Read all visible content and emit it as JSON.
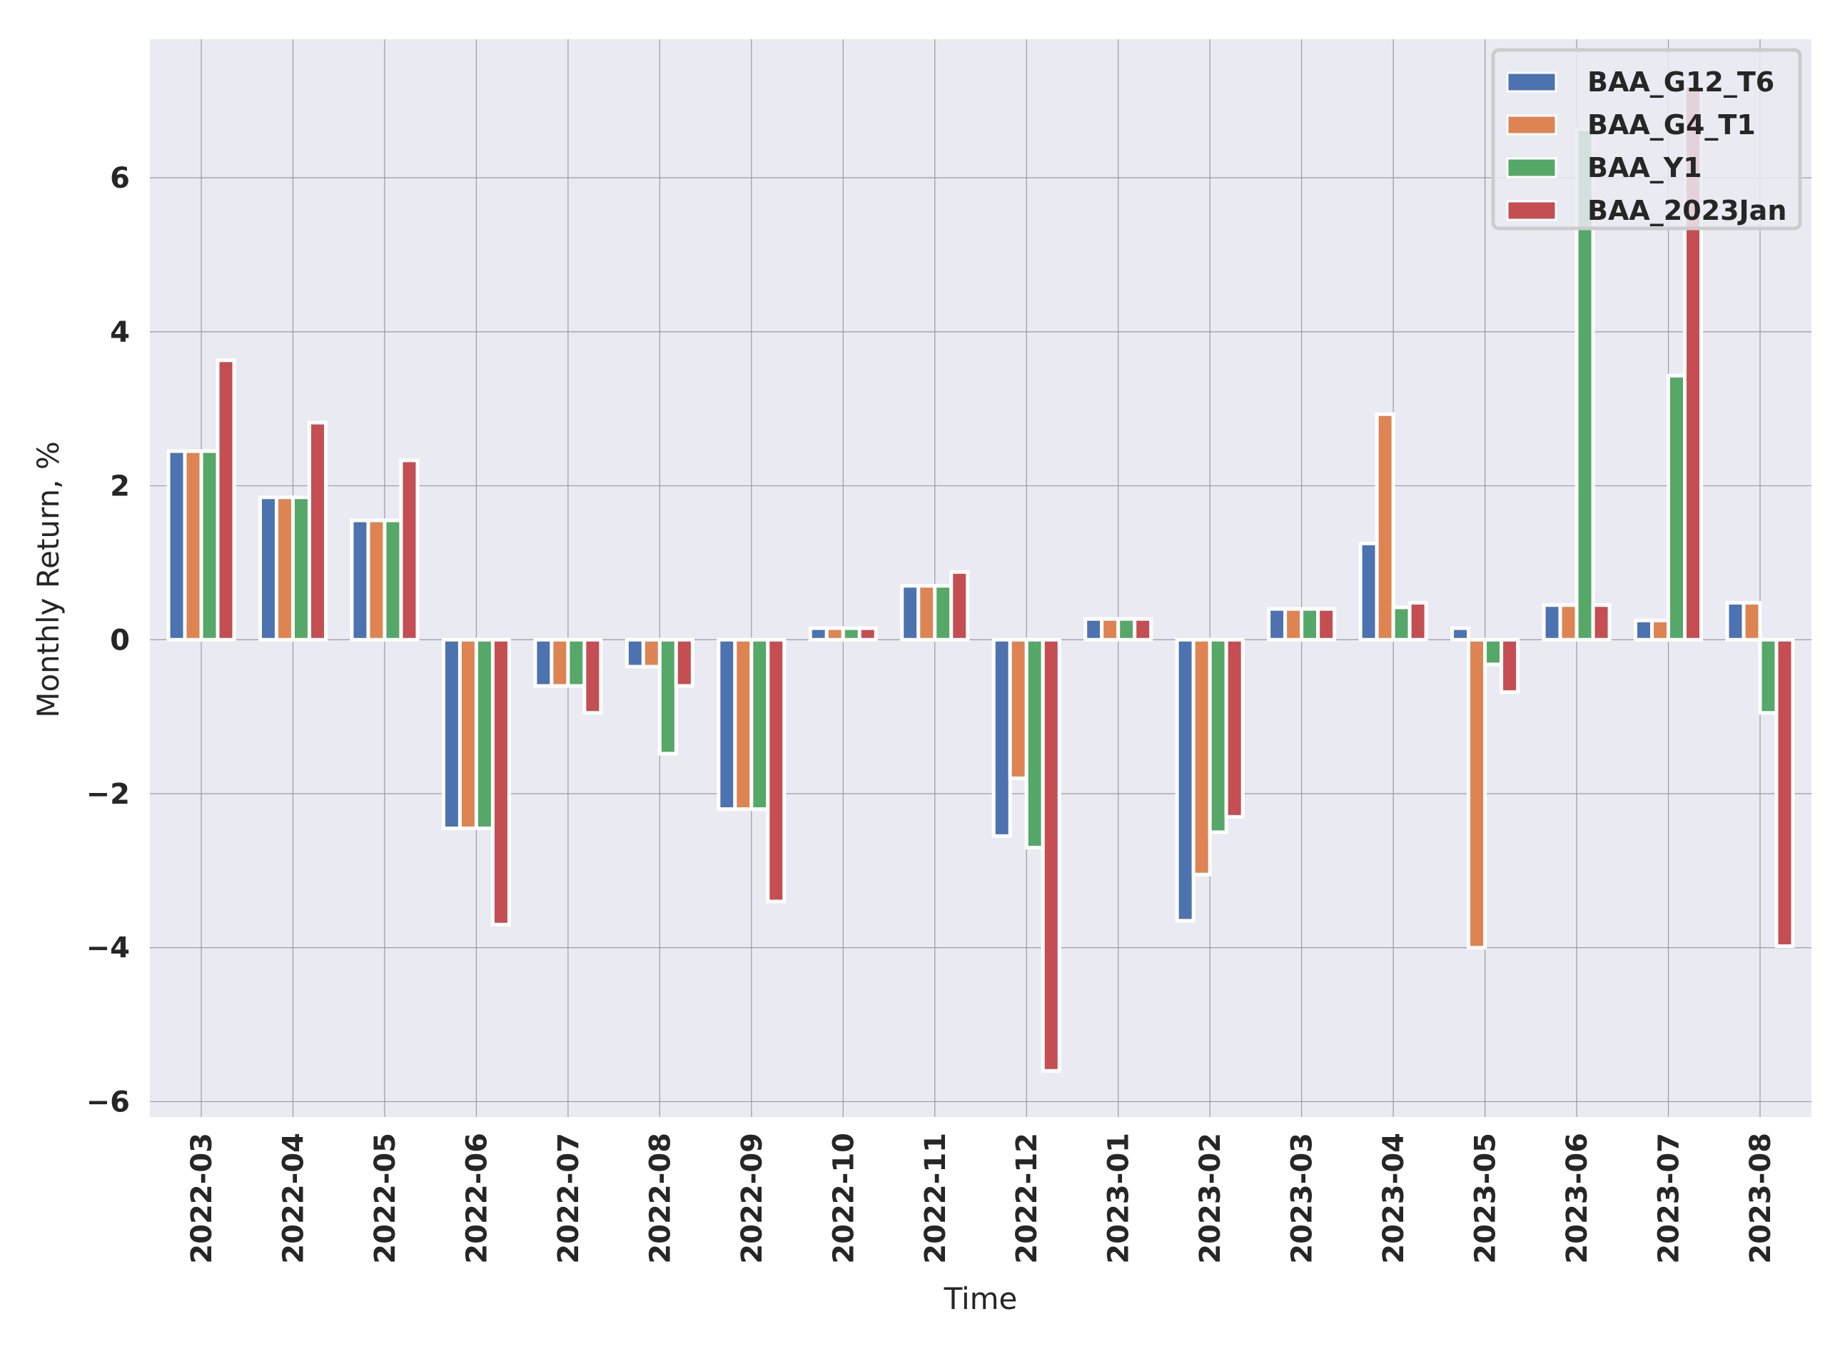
{
  "chart_data": {
    "type": "bar",
    "title": "",
    "xlabel": "Time",
    "ylabel": "Monthly Return, %",
    "ylim": [
      -6.2,
      7.8
    ],
    "yticks": [
      -6,
      -4,
      -2,
      0,
      2,
      4,
      6
    ],
    "ytick_labels": [
      "−6",
      "−4",
      "−2",
      "0",
      "2",
      "4",
      "6"
    ],
    "grid": true,
    "legend_position": "top-right",
    "categories": [
      "2022-03",
      "2022-04",
      "2022-05",
      "2022-06",
      "2022-07",
      "2022-08",
      "2022-09",
      "2022-10",
      "2022-11",
      "2022-12",
      "2023-01",
      "2023-02",
      "2023-03",
      "2023-04",
      "2023-05",
      "2023-06",
      "2023-07",
      "2023-08"
    ],
    "series": [
      {
        "name": "BAA_G12_T6",
        "color": "#4c72b0",
        "values": [
          2.45,
          1.85,
          1.55,
          -2.45,
          -0.6,
          -0.35,
          -2.2,
          0.15,
          0.7,
          -2.55,
          0.27,
          -3.65,
          0.4,
          1.25,
          0.15,
          0.45,
          0.25,
          0.48
        ]
      },
      {
        "name": "BAA_G4_T1",
        "color": "#dd8452",
        "values": [
          2.45,
          1.85,
          1.55,
          -2.45,
          -0.6,
          -0.35,
          -2.2,
          0.15,
          0.7,
          -1.8,
          0.27,
          -3.05,
          0.4,
          2.93,
          -4.0,
          0.45,
          0.25,
          0.48
        ]
      },
      {
        "name": "BAA_Y1",
        "color": "#55a868",
        "values": [
          2.45,
          1.85,
          1.55,
          -2.45,
          -0.6,
          -1.48,
          -2.2,
          0.15,
          0.7,
          -2.7,
          0.27,
          -2.5,
          0.4,
          0.42,
          -0.32,
          6.63,
          3.43,
          -0.95
        ]
      },
      {
        "name": "BAA_2023Jan",
        "color": "#c44e52",
        "values": [
          3.63,
          2.82,
          2.33,
          -3.7,
          -0.95,
          -0.6,
          -3.4,
          0.15,
          0.88,
          -5.6,
          0.27,
          -2.3,
          0.4,
          0.48,
          -0.68,
          0.45,
          7.2,
          -3.98
        ]
      }
    ]
  }
}
